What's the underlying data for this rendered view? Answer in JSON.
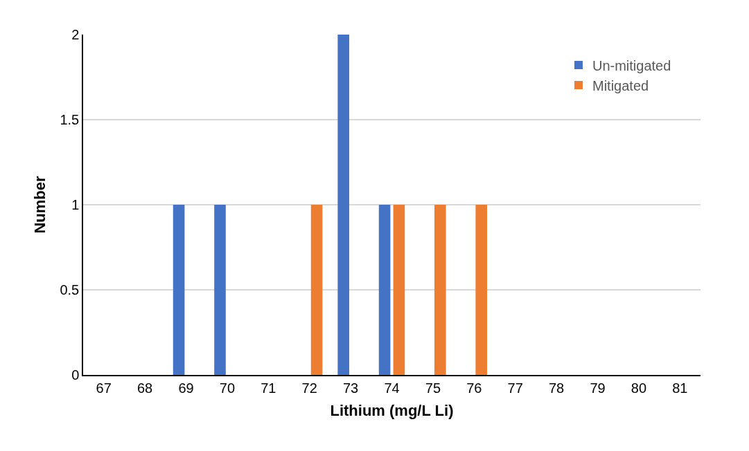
{
  "chart_data": {
    "type": "bar",
    "xlabel": "Lithium (mg/L Li)",
    "ylabel": "Number",
    "categories": [
      "67",
      "68",
      "69",
      "70",
      "71",
      "72",
      "73",
      "74",
      "75",
      "76",
      "77",
      "78",
      "79",
      "80",
      "81"
    ],
    "series": [
      {
        "name": "Un-mitigated",
        "color": "#4472c4",
        "values": [
          0,
          0,
          1,
          1,
          0,
          0,
          2,
          1,
          0,
          0,
          0,
          0,
          0,
          0,
          0
        ]
      },
      {
        "name": "Mitigated",
        "color": "#ed7d31",
        "values": [
          0,
          0,
          0,
          0,
          0,
          1,
          0,
          1,
          1,
          1,
          0,
          0,
          0,
          0,
          0
        ]
      }
    ],
    "ylim": [
      0,
      2
    ],
    "yticks": [
      0,
      0.5,
      1,
      1.5,
      2
    ],
    "grid": "y",
    "legend": "top right"
  }
}
